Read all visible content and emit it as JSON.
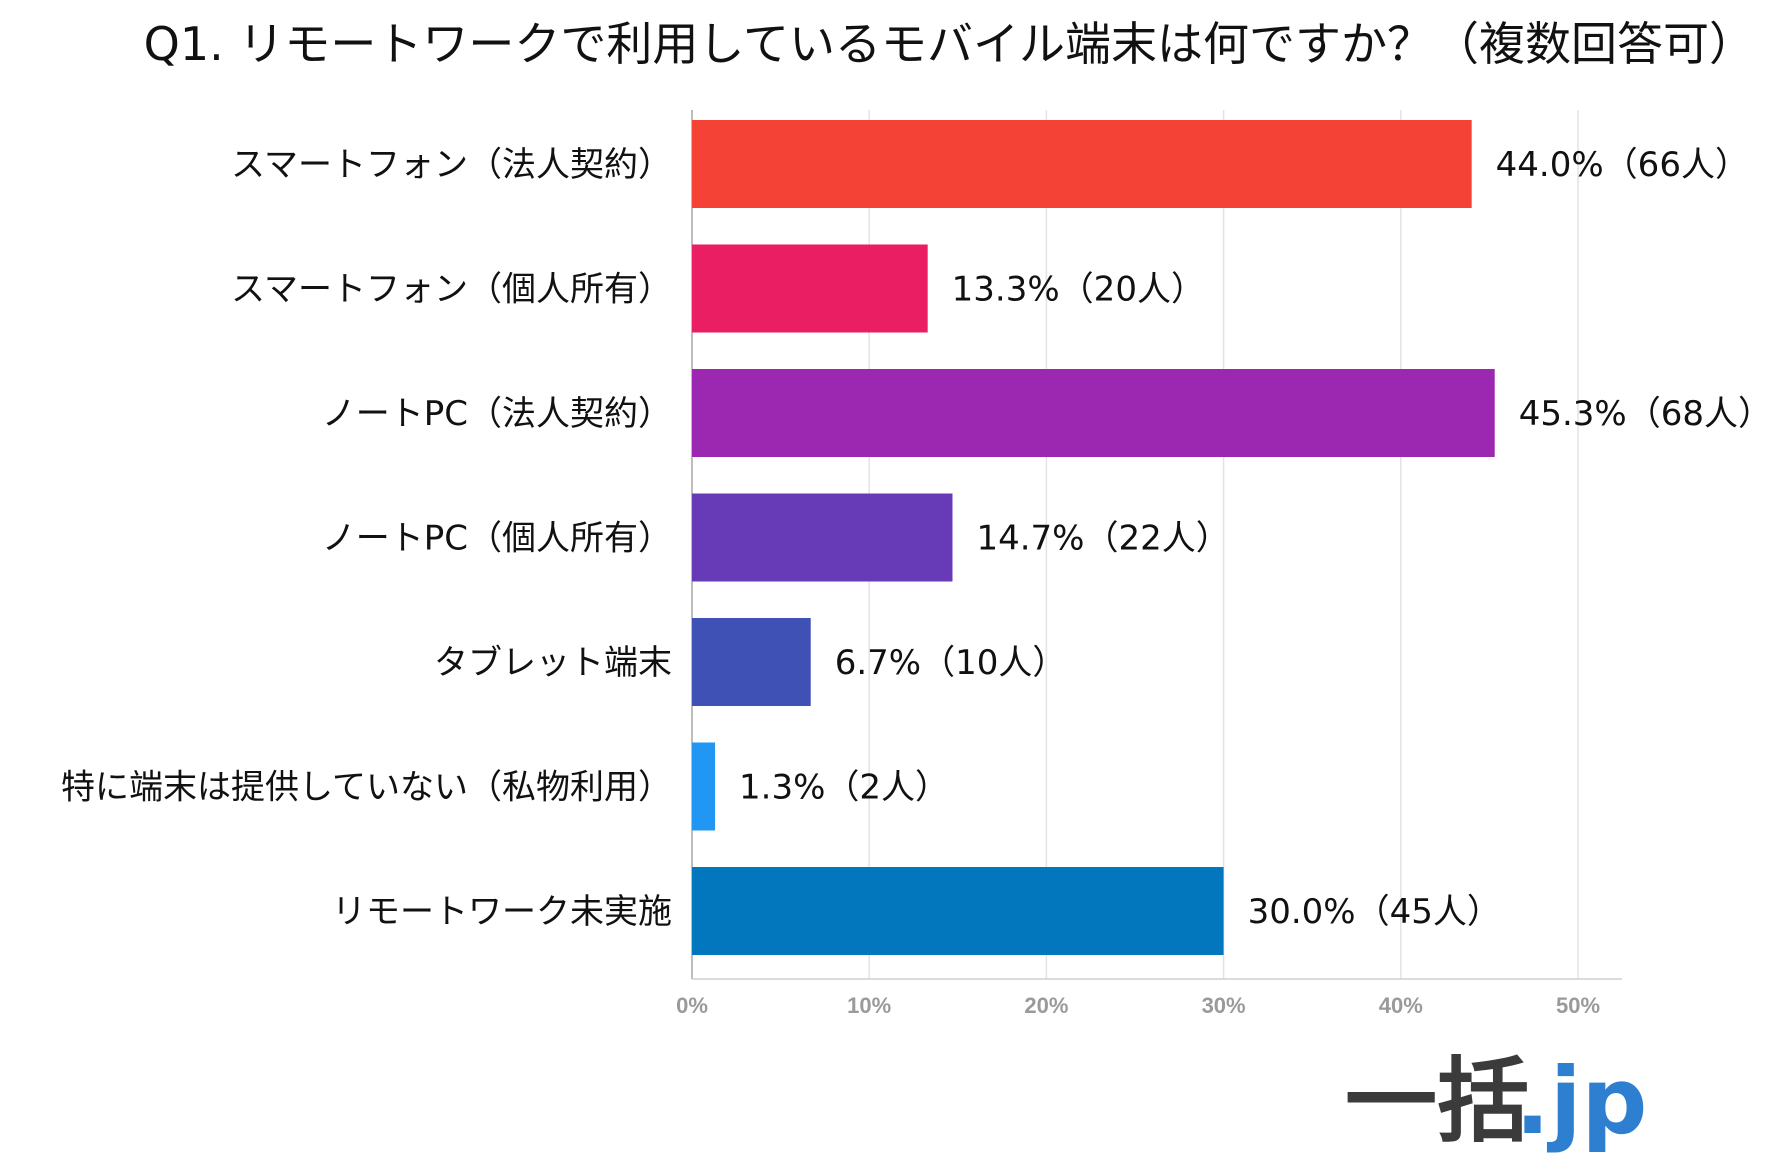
{
  "chart_data": {
    "type": "bar",
    "orientation": "horizontal",
    "title": "Q1. リモートワークで利用しているモバイル端末は何ですか？（複数回答可）",
    "categories": [
      "スマートフォン（法人契約）",
      "スマートフォン（個人所有）",
      "ノートPC（法人契約）",
      "ノートPC（個人所有）",
      "タブレット端末",
      "特に端末は提供していない（私物利用）",
      "リモートワーク未実施"
    ],
    "values": [
      44.0,
      13.3,
      45.3,
      14.7,
      6.7,
      1.3,
      30.0
    ],
    "data_labels": [
      "44.0%（66人）",
      "13.3%（20人）",
      "45.3%（68人）",
      "14.7%（22人）",
      "6.7%（10人）",
      "1.3%（2人）",
      "30.0%（45人）"
    ],
    "colors": [
      "#f44336",
      "#e91e63",
      "#9c27b0",
      "#673ab7",
      "#3f51b5",
      "#2196f3",
      "#0277bd"
    ],
    "xlim": [
      0,
      50
    ],
    "x_ticks": [
      0,
      10,
      20,
      30,
      40,
      50
    ],
    "x_tick_labels": [
      "0%",
      "10%",
      "20%",
      "30%",
      "40%",
      "50%"
    ],
    "xlabel": "",
    "ylabel": "",
    "grid": true,
    "legend": "none"
  },
  "logo": {
    "text": "一括",
    "suffix": ".jp"
  }
}
